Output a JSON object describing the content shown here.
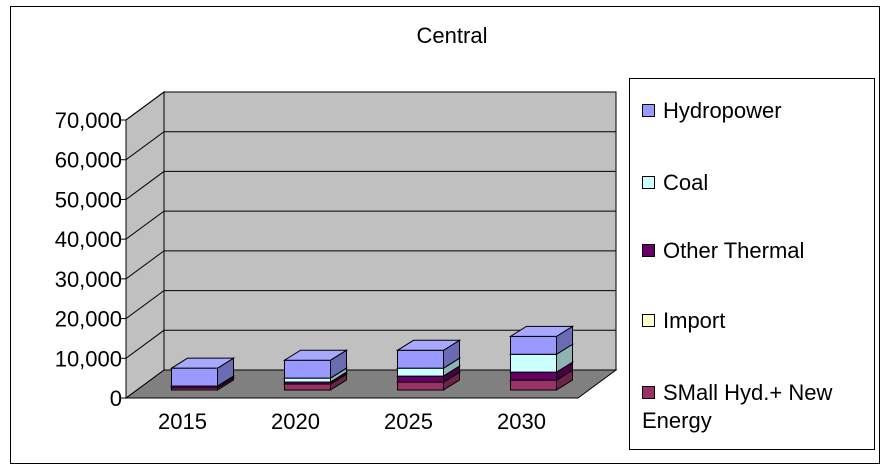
{
  "chart_data": {
    "type": "bar",
    "stacked": true,
    "three_d": true,
    "title": "Central",
    "xlabel": "",
    "ylabel": "",
    "categories": [
      "2015",
      "2020",
      "2025",
      "2030"
    ],
    "ylim": [
      0,
      70000
    ],
    "yticks": [
      0,
      10000,
      20000,
      30000,
      40000,
      50000,
      60000,
      70000
    ],
    "ytick_labels": [
      "0",
      "10,000",
      "20,000",
      "30,000",
      "40,000",
      "50,000",
      "60,000",
      "70,000"
    ],
    "grid": true,
    "legend_position": "right",
    "series": [
      {
        "name": "SMall Hyd.+ New Energy",
        "color": "#993366",
        "values": [
          500,
          1500,
          2000,
          2500
        ]
      },
      {
        "name": "Import",
        "color": "#ffffcc",
        "values": [
          0,
          0,
          0,
          0
        ]
      },
      {
        "name": "Other Thermal",
        "color": "#660066",
        "values": [
          500,
          500,
          1500,
          2000
        ]
      },
      {
        "name": "Coal",
        "color": "#ccffff",
        "values": [
          0,
          1000,
          2000,
          4500
        ]
      },
      {
        "name": "Hydropower",
        "color": "#9999ff",
        "values": [
          4500,
          4500,
          4500,
          4500
        ]
      }
    ]
  }
}
